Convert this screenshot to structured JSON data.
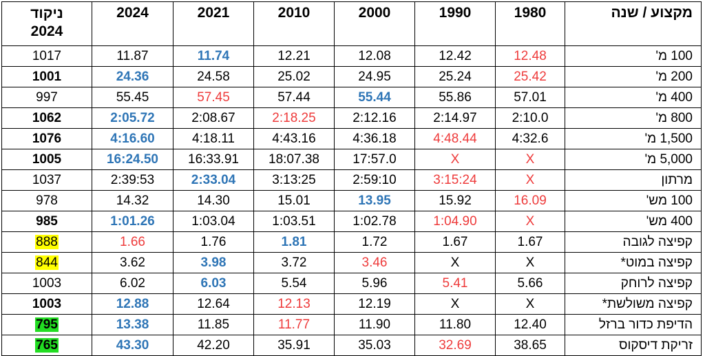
{
  "header": {
    "col_score": [
      "ניקוד",
      "2024"
    ],
    "years": [
      "2024",
      "2021",
      "2010",
      "2000",
      "1990",
      "1980"
    ],
    "col_event": "מקצוע / שנה"
  },
  "legend_colors": {
    "best": "#2e75b6",
    "worst": "#ee3b3b",
    "yellow_highlight": "#ffff00",
    "green_highlight": "#22dd22"
  },
  "rows": [
    {
      "event": "100 מ'",
      "score": "1017",
      "score_bold": false,
      "score_highlight": "",
      "values": [
        "11.87",
        "11.74",
        "12.21",
        "12.08",
        "12.42",
        "12.48"
      ],
      "styles": [
        "",
        "blue",
        "",
        "",
        "",
        "red"
      ]
    },
    {
      "event": "200 מ'",
      "score": "1001",
      "score_bold": true,
      "score_highlight": "",
      "values": [
        "24.36",
        "24.58",
        "25.02",
        "24.95",
        "25.24",
        "25.42"
      ],
      "styles": [
        "blue",
        "",
        "",
        "",
        "",
        "red"
      ]
    },
    {
      "event": "400 מ'",
      "score": "997",
      "score_bold": false,
      "score_highlight": "",
      "values": [
        "55.45",
        "57.45",
        "57.44",
        "55.44",
        "55.86",
        "57.01"
      ],
      "styles": [
        "",
        "red",
        "",
        "blue",
        "",
        ""
      ]
    },
    {
      "event": "800 מ'",
      "score": "1062",
      "score_bold": true,
      "score_highlight": "",
      "values": [
        "2:05.72",
        "2:08.67",
        "2:18.25",
        "2:12.16",
        "2:14.97",
        "2:10.0"
      ],
      "styles": [
        "blue",
        "",
        "red",
        "",
        "",
        ""
      ]
    },
    {
      "event": "1,500 מ'",
      "score": "1076",
      "score_bold": true,
      "score_highlight": "",
      "values": [
        "4:16.60",
        "4:18.11",
        "4:43.16",
        "4:36.18",
        "4:48.44",
        "4:32.6"
      ],
      "styles": [
        "blue",
        "",
        "",
        "",
        "red",
        ""
      ]
    },
    {
      "event": "5,000 מ'",
      "score": "1005",
      "score_bold": true,
      "score_highlight": "",
      "values": [
        "16:24.50",
        "16:33.91",
        "18:07.38",
        "17:57.0",
        "X",
        "X"
      ],
      "styles": [
        "blue",
        "",
        "",
        "",
        "red",
        "red"
      ]
    },
    {
      "event": "מרתון",
      "score": "1037",
      "score_bold": false,
      "score_highlight": "",
      "values": [
        "2:39:53",
        "2:33.04",
        "3:13:25",
        "2:59:10",
        "3:15:24",
        "X"
      ],
      "styles": [
        "",
        "blue",
        "",
        "",
        "red",
        "red"
      ]
    },
    {
      "event": "100 מש'",
      "score": "978",
      "score_bold": false,
      "score_highlight": "",
      "values": [
        "14.32",
        "14.30",
        "15.01",
        "13.95",
        "15.92",
        "16.09"
      ],
      "styles": [
        "",
        "",
        "",
        "blue",
        "",
        "red"
      ]
    },
    {
      "event": "400 מש'",
      "score": "985",
      "score_bold": true,
      "score_highlight": "",
      "values": [
        "1:01.26",
        "1:03.04",
        "1:03.51",
        "1:02.78",
        "1:04.90",
        "X"
      ],
      "styles": [
        "blue",
        "",
        "",
        "",
        "red",
        "red"
      ]
    },
    {
      "event": "קפיצה לגובה",
      "score": "888",
      "score_bold": false,
      "score_highlight": "yellow",
      "values": [
        "1.66",
        "1.76",
        "1.81",
        "1.72",
        "1.67",
        "1.67"
      ],
      "styles": [
        "red",
        "",
        "blue",
        "",
        "",
        ""
      ]
    },
    {
      "event": "קפיצה במוט*",
      "score": "844",
      "score_bold": false,
      "score_highlight": "yellow",
      "values": [
        "3.62",
        "3.98",
        "3.72",
        "3.46",
        "X",
        "X"
      ],
      "styles": [
        "",
        "blue",
        "",
        "red",
        "",
        ""
      ]
    },
    {
      "event": "קפיצה לרוחק",
      "score": "1003",
      "score_bold": false,
      "score_highlight": "",
      "values": [
        "6.02",
        "6.03",
        "5.54",
        "5.96",
        "5.41",
        "5.66"
      ],
      "styles": [
        "",
        "blue",
        "",
        "",
        "red",
        ""
      ]
    },
    {
      "event": "קפיצה משולשת*",
      "score": "1003",
      "score_bold": true,
      "score_highlight": "",
      "values": [
        "12.88",
        "12.64",
        "12.13",
        "12.19",
        "X",
        "X"
      ],
      "styles": [
        "blue",
        "",
        "red",
        "",
        "",
        ""
      ]
    },
    {
      "event": "הדיפת כדור ברזל",
      "score": "795",
      "score_bold": true,
      "score_highlight": "green",
      "values": [
        "13.38",
        "11.85",
        "11.77",
        "11.90",
        "11.80",
        "12.40"
      ],
      "styles": [
        "blue",
        "",
        "red",
        "",
        "",
        ""
      ]
    },
    {
      "event": "זריקת דיסקוס",
      "score": "765",
      "score_bold": true,
      "score_highlight": "green",
      "values": [
        "43.30",
        "42.20",
        "35.91",
        "35.03",
        "32.69",
        "38.65"
      ],
      "styles": [
        "blue",
        "",
        "",
        "",
        "red",
        ""
      ]
    }
  ]
}
